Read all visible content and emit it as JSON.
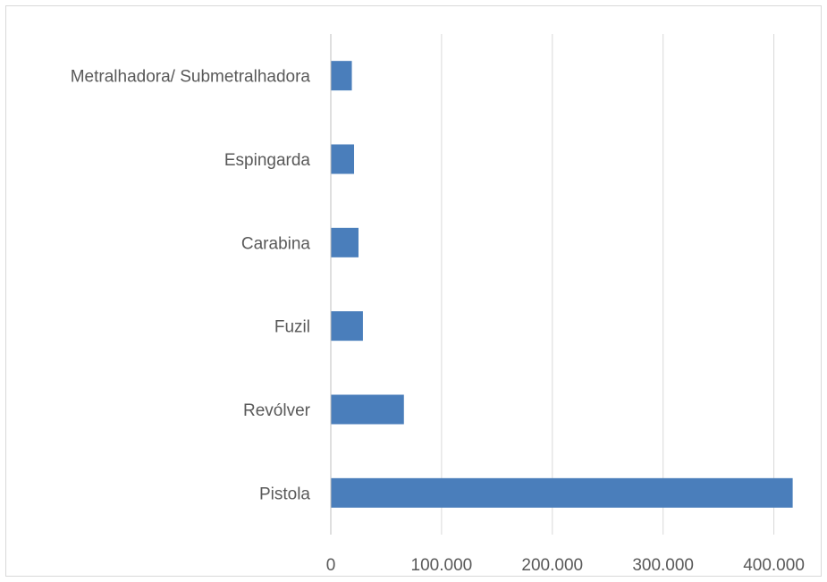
{
  "chart_data": {
    "type": "bar",
    "orientation": "horizontal",
    "title": "",
    "xlabel": "",
    "ylabel": "",
    "categories": [
      "Metralhadora/ Submetralhadora",
      "Espingarda",
      "Carabina",
      "Fuzil",
      "Revólver",
      "Pistola"
    ],
    "values": [
      19000,
      21000,
      25000,
      29000,
      66000,
      417000
    ],
    "xlim": [
      0,
      450000
    ],
    "xticks": [
      0,
      100000,
      200000,
      300000,
      400000
    ],
    "xtick_labels": [
      "0",
      "100.000",
      "200.000",
      "300.000",
      "400.000"
    ],
    "grid": "vertical",
    "legend": "none",
    "colors": {
      "bar": "#4a7ebb",
      "grid": "#d9d9d9",
      "axis": "#bfbfbf",
      "text": "#595959"
    }
  }
}
